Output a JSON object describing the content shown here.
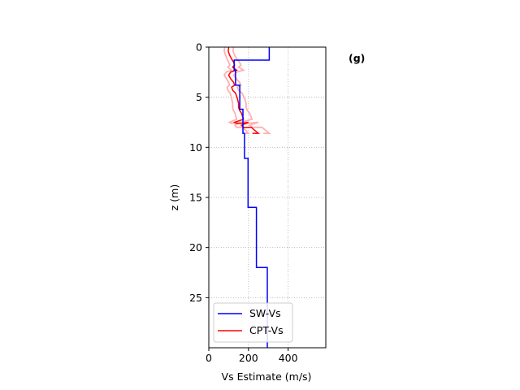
{
  "chart_data": {
    "type": "line",
    "panel_label": "(g)",
    "xlabel": "Vs Estimate (m/s)",
    "ylabel": "z (m)",
    "xlim": [
      0,
      590
    ],
    "ylim": [
      30,
      0
    ],
    "y_inverted": true,
    "xticks": [
      0,
      200,
      400
    ],
    "xtick_labels": [
      "0",
      "200",
      "400"
    ],
    "yticks": [
      0,
      5,
      10,
      15,
      20,
      25
    ],
    "ytick_labels": [
      "0",
      "5",
      "10",
      "15",
      "20",
      "25"
    ],
    "grid": true,
    "legend_position": "lower-left",
    "series": [
      {
        "name": "SW-Vs",
        "color": "#0000ff",
        "x": [
          305,
          305,
          128,
          128,
          135,
          135,
          156,
          156,
          172,
          172,
          180,
          180,
          198,
          198,
          240,
          240,
          295,
          295
        ],
        "y": [
          0,
          1.3,
          1.3,
          2.3,
          2.3,
          3.8,
          3.8,
          6.2,
          6.2,
          8.6,
          8.6,
          11.1,
          11.1,
          16.0,
          16.0,
          22.0,
          22.0,
          30
        ]
      },
      {
        "name": "CPT-Vs",
        "color": "#ff0000",
        "x": [
          100,
          98,
          105,
          115,
          125,
          130,
          120,
          140,
          110,
          100,
          112,
          125,
          130,
          115,
          120,
          135,
          140,
          145,
          150,
          150,
          155,
          165,
          170,
          175,
          130,
          140,
          165,
          200,
          165,
          175,
          215,
          225,
          250,
          220
        ],
        "y": [
          0,
          0.4,
          0.8,
          1.2,
          1.5,
          1.8,
          2.0,
          2.3,
          2.5,
          2.8,
          3.2,
          3.5,
          3.8,
          4.0,
          4.3,
          4.6,
          4.9,
          5.2,
          5.6,
          6.0,
          6.3,
          6.6,
          6.9,
          7.2,
          7.5,
          7.6,
          7.6,
          7.5,
          7.8,
          8.0,
          8.0,
          8.2,
          8.6,
          8.6
        ]
      },
      {
        "name": "",
        "color": "#ffb0b0",
        "x": [
          80,
          78,
          85,
          92,
          100,
          106,
          96,
          115,
          88,
          78,
          90,
          100,
          105,
          92,
          96,
          108,
          112,
          116,
          120,
          120,
          124,
          132,
          136,
          140,
          104,
          112,
          132,
          160,
          132,
          140,
          172,
          180,
          200,
          176
        ],
        "y": [
          0,
          0.4,
          0.8,
          1.2,
          1.5,
          1.8,
          2.0,
          2.3,
          2.5,
          2.8,
          3.2,
          3.5,
          3.8,
          4.0,
          4.3,
          4.6,
          4.9,
          5.2,
          5.6,
          6.0,
          6.3,
          6.6,
          6.9,
          7.2,
          7.5,
          7.6,
          7.6,
          7.5,
          7.8,
          8.0,
          8.0,
          8.2,
          8.6,
          8.6
        ]
      },
      {
        "name": "",
        "color": "#ffb0b0",
        "x": [
          125,
          122,
          130,
          142,
          155,
          162,
          150,
          175,
          138,
          125,
          140,
          155,
          162,
          144,
          150,
          168,
          175,
          182,
          188,
          188,
          194,
          206,
          212,
          218,
          162,
          175,
          206,
          250,
          206,
          218,
          268,
          280,
          305,
          275
        ],
        "y": [
          0,
          0.4,
          0.8,
          1.2,
          1.5,
          1.8,
          2.0,
          2.3,
          2.5,
          2.8,
          3.2,
          3.5,
          3.8,
          4.0,
          4.3,
          4.6,
          4.9,
          5.2,
          5.6,
          6.0,
          6.3,
          6.6,
          6.9,
          7.2,
          7.5,
          7.6,
          7.6,
          7.5,
          7.8,
          8.0,
          8.0,
          8.2,
          8.6,
          8.6
        ]
      }
    ],
    "legend": [
      {
        "label": "SW-Vs",
        "color": "#0000ff"
      },
      {
        "label": "CPT-Vs",
        "color": "#ff0000"
      }
    ]
  }
}
